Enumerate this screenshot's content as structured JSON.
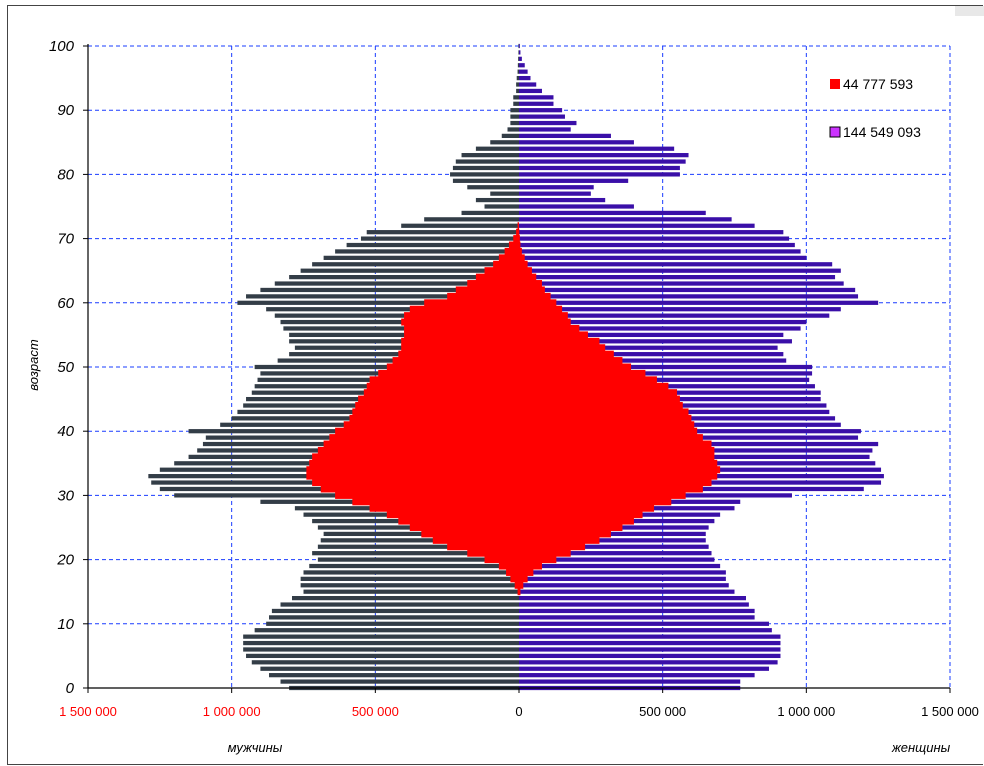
{
  "chart_data": {
    "type": "bar",
    "orientation": "horizontal",
    "ylabel": "возраст",
    "xlabel_left": "мужчины",
    "xlabel_right": "женщины",
    "ages": [
      0,
      1,
      2,
      3,
      4,
      5,
      6,
      7,
      8,
      9,
      10,
      11,
      12,
      13,
      14,
      15,
      16,
      17,
      18,
      19,
      20,
      21,
      22,
      23,
      24,
      25,
      26,
      27,
      28,
      29,
      30,
      31,
      32,
      33,
      34,
      35,
      36,
      37,
      38,
      39,
      40,
      41,
      42,
      43,
      44,
      45,
      46,
      47,
      48,
      49,
      50,
      51,
      52,
      53,
      54,
      55,
      56,
      57,
      58,
      59,
      60,
      61,
      62,
      63,
      64,
      65,
      66,
      67,
      68,
      69,
      70,
      71,
      72,
      73,
      74,
      75,
      76,
      77,
      78,
      79,
      80,
      81,
      82,
      83,
      84,
      85,
      86,
      87,
      88,
      89,
      90,
      91,
      92,
      93,
      94,
      95,
      96,
      97,
      98,
      99,
      100
    ],
    "x_ticks": [
      {
        "value": -1500000,
        "label": "1 500 000",
        "color": "#ff0000"
      },
      {
        "value": -1000000,
        "label": "1 000 000",
        "color": "#ff0000"
      },
      {
        "value": -500000,
        "label": "500 000",
        "color": "#ff0000"
      },
      {
        "value": 0,
        "label": "0",
        "color": "#000000"
      },
      {
        "value": 500000,
        "label": "500 000",
        "color": "#000000"
      },
      {
        "value": 1000000,
        "label": "1 000 000",
        "color": "#000000"
      },
      {
        "value": 1500000,
        "label": "1 500 000",
        "color": "#000000"
      }
    ],
    "y_ticks": [
      0,
      10,
      20,
      30,
      40,
      50,
      60,
      70,
      80,
      90,
      100
    ],
    "xlim": [
      -1500000,
      1500000
    ],
    "ylim": [
      0,
      100
    ],
    "grid": true,
    "legend_position": "top-right",
    "series": [
      {
        "name": "144 549 093",
        "role": "total",
        "color_male": "#333d47",
        "color_female": "#3a0fa8",
        "male": [
          800000,
          830000,
          870000,
          900000,
          930000,
          950000,
          960000,
          960000,
          960000,
          920000,
          880000,
          870000,
          860000,
          830000,
          790000,
          750000,
          760000,
          760000,
          750000,
          730000,
          700000,
          720000,
          700000,
          690000,
          680000,
          700000,
          720000,
          750000,
          780000,
          900000,
          1200000,
          1250000,
          1280000,
          1290000,
          1250000,
          1200000,
          1150000,
          1120000,
          1100000,
          1090000,
          1150000,
          1040000,
          1000000,
          980000,
          960000,
          950000,
          930000,
          920000,
          910000,
          900000,
          920000,
          840000,
          800000,
          780000,
          800000,
          800000,
          820000,
          830000,
          850000,
          880000,
          980000,
          950000,
          900000,
          850000,
          800000,
          760000,
          720000,
          680000,
          640000,
          600000,
          550000,
          530000,
          410000,
          330000,
          200000,
          120000,
          150000,
          100000,
          180000,
          230000,
          240000,
          230000,
          220000,
          200000,
          150000,
          100000,
          60000,
          40000,
          30000,
          30000,
          30000,
          20000,
          20000,
          10000,
          10000,
          8000,
          5000,
          4000,
          3000,
          2000,
          2000
        ],
        "female": [
          770000,
          770000,
          820000,
          870000,
          900000,
          910000,
          910000,
          910000,
          910000,
          880000,
          870000,
          820000,
          820000,
          800000,
          790000,
          750000,
          730000,
          720000,
          720000,
          700000,
          680000,
          670000,
          660000,
          650000,
          650000,
          660000,
          680000,
          700000,
          750000,
          770000,
          950000,
          1200000,
          1260000,
          1270000,
          1260000,
          1240000,
          1220000,
          1230000,
          1250000,
          1180000,
          1190000,
          1120000,
          1100000,
          1080000,
          1070000,
          1050000,
          1050000,
          1030000,
          1010000,
          1020000,
          1020000,
          930000,
          920000,
          900000,
          950000,
          920000,
          980000,
          1000000,
          1080000,
          1120000,
          1250000,
          1180000,
          1170000,
          1130000,
          1100000,
          1120000,
          1090000,
          1000000,
          980000,
          960000,
          940000,
          920000,
          820000,
          740000,
          650000,
          400000,
          300000,
          250000,
          260000,
          380000,
          560000,
          560000,
          580000,
          590000,
          540000,
          400000,
          320000,
          180000,
          200000,
          160000,
          150000,
          120000,
          120000,
          80000,
          60000,
          40000,
          30000,
          20000,
          10000,
          5000,
          3000
        ]
      },
      {
        "name": "44 777 593",
        "role": "overlay",
        "color": "#ff0000",
        "male": [
          0,
          0,
          0,
          0,
          0,
          0,
          0,
          0,
          0,
          0,
          0,
          0,
          0,
          0,
          0,
          5000,
          15000,
          30000,
          45000,
          70000,
          120000,
          180000,
          250000,
          300000,
          340000,
          380000,
          420000,
          460000,
          520000,
          580000,
          640000,
          690000,
          720000,
          740000,
          740000,
          730000,
          720000,
          700000,
          680000,
          660000,
          640000,
          610000,
          590000,
          580000,
          570000,
          560000,
          540000,
          530000,
          520000,
          490000,
          460000,
          440000,
          420000,
          410000,
          410000,
          400000,
          400000,
          410000,
          400000,
          380000,
          330000,
          250000,
          220000,
          180000,
          150000,
          120000,
          90000,
          70000,
          50000,
          35000,
          20000,
          10000,
          5000,
          0,
          0,
          0,
          0,
          0,
          0,
          0,
          0,
          0,
          0,
          0,
          0,
          0,
          0,
          0,
          0,
          0,
          0,
          0,
          0,
          0,
          0,
          0,
          0,
          0,
          0,
          0,
          0
        ],
        "female": [
          0,
          0,
          0,
          0,
          0,
          0,
          0,
          0,
          0,
          0,
          0,
          0,
          0,
          0,
          0,
          5000,
          15000,
          30000,
          50000,
          80000,
          130000,
          180000,
          230000,
          280000,
          320000,
          360000,
          400000,
          430000,
          470000,
          530000,
          580000,
          640000,
          670000,
          690000,
          700000,
          690000,
          680000,
          680000,
          670000,
          640000,
          620000,
          610000,
          600000,
          590000,
          570000,
          560000,
          550000,
          520000,
          480000,
          440000,
          390000,
          360000,
          330000,
          300000,
          280000,
          240000,
          210000,
          180000,
          170000,
          150000,
          130000,
          110000,
          90000,
          80000,
          60000,
          45000,
          30000,
          20000,
          10000,
          5000,
          3000,
          1000,
          0,
          0,
          0,
          0,
          0,
          0,
          0,
          0,
          0,
          0,
          0,
          0,
          0,
          0,
          0,
          0,
          0,
          0,
          0,
          0,
          0,
          0,
          0,
          0,
          0,
          0,
          0,
          0,
          0
        ]
      }
    ]
  }
}
